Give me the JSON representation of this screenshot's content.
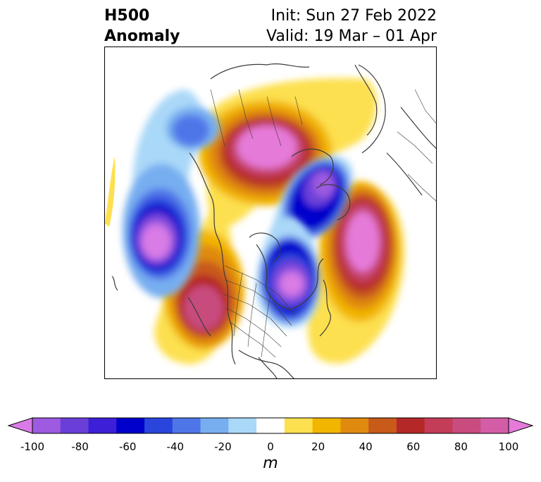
{
  "header": {
    "title_line1": "H500",
    "title_line2": "Anomaly",
    "init": "Init: Sun 27 Feb 2022",
    "valid": "Valid: 19 Mar – 01 Apr"
  },
  "colorbar": {
    "unit": "m",
    "ticks": [
      "-100",
      "-80",
      "-60",
      "-40",
      "-20",
      "0",
      "20",
      "40",
      "60",
      "80",
      "100"
    ],
    "colors": [
      "#d97be6",
      "#9e5ae0",
      "#6a3fd8",
      "#3c1fd6",
      "#0000cc",
      "#2a45dc",
      "#4f76e8",
      "#77aef0",
      "#aad8f8",
      "#ffffff",
      "#fde050",
      "#f2b500",
      "#e08a10",
      "#c85a1a",
      "#b52828",
      "#c33d59",
      "#c84c7e",
      "#d45da8",
      "#e67ad9"
    ]
  },
  "map": {
    "anomaly_centers": [
      {
        "name": "ridge-north",
        "sign": "positive",
        "value": 100
      },
      {
        "name": "ridge-west-coast",
        "sign": "positive",
        "value": 80
      },
      {
        "name": "ridge-atlantic",
        "sign": "positive",
        "value": 100
      },
      {
        "name": "trough-pacific",
        "sign": "negative",
        "value": -100
      },
      {
        "name": "trough-eastern-canada",
        "sign": "negative",
        "value": -100
      },
      {
        "name": "trough-greenland",
        "sign": "negative",
        "value": -80
      },
      {
        "name": "trough-alaska",
        "sign": "negative",
        "value": -40
      }
    ]
  }
}
